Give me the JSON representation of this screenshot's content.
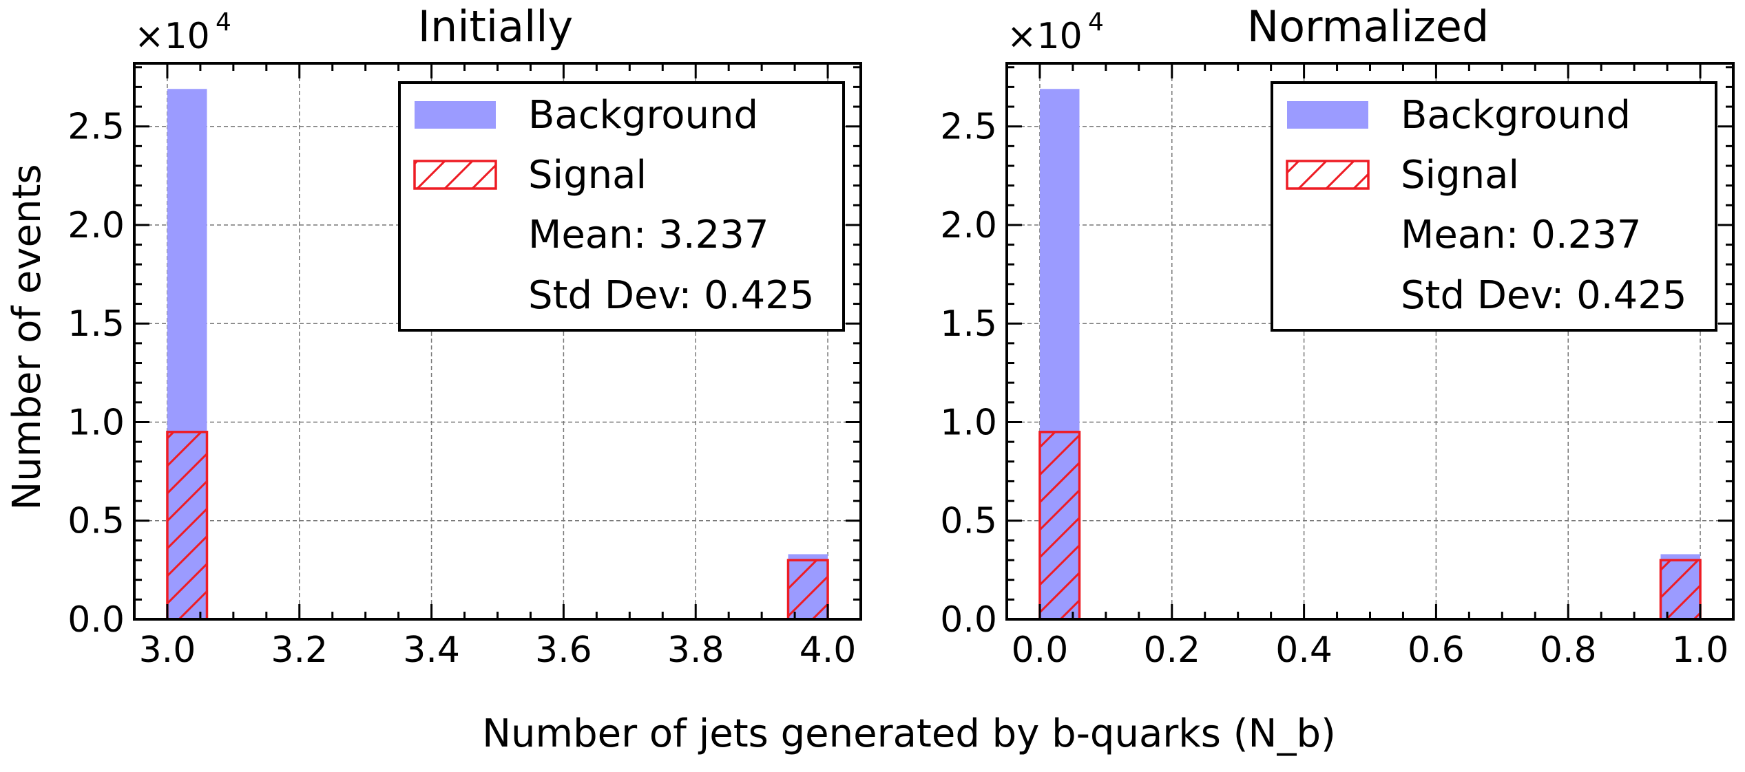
{
  "figure": {
    "xlabel": "Number of jets generated by b-quarks (N_b)",
    "ylabel": "Number of events"
  },
  "chart_data": [
    {
      "type": "bar",
      "title": "Initially",
      "xlim": [
        2.95,
        4.05
      ],
      "ylim": [
        0,
        28200
      ],
      "y_multiplier_text": "×10",
      "y_multiplier_exp": "4",
      "xticks": [
        "3.0",
        "3.2",
        "3.4",
        "3.6",
        "3.8",
        "4.0"
      ],
      "xtick_values": [
        3.0,
        3.2,
        3.4,
        3.6,
        3.8,
        4.0
      ],
      "yticks": [
        "0.0",
        "0.5",
        "1.0",
        "1.5",
        "2.0",
        "2.5"
      ],
      "ytick_values": [
        0,
        5000,
        10000,
        15000,
        20000,
        25000
      ],
      "grid": true,
      "legend_position": "top-right",
      "bin_width": 0.06,
      "series": [
        {
          "name": "Background",
          "color": "#9b9bff",
          "style": "filled",
          "bins": [
            {
              "x0": 3.0,
              "value": 26900
            },
            {
              "x0": 3.94,
              "value": 3300
            }
          ]
        },
        {
          "name": "Signal",
          "color": "#ee1c24",
          "style": "hatched-outline",
          "bins": [
            {
              "x0": 3.0,
              "value": 9500
            },
            {
              "x0": 3.94,
              "value": 3000
            }
          ]
        }
      ],
      "legend_extra": [
        "Mean: 3.237",
        "Std Dev: 0.425"
      ]
    },
    {
      "type": "bar",
      "title": "Normalized",
      "xlim": [
        -0.05,
        1.05
      ],
      "ylim": [
        0,
        28200
      ],
      "y_multiplier_text": "×10",
      "y_multiplier_exp": "4",
      "xticks": [
        "0.0",
        "0.2",
        "0.4",
        "0.6",
        "0.8",
        "1.0"
      ],
      "xtick_values": [
        0.0,
        0.2,
        0.4,
        0.6,
        0.8,
        1.0
      ],
      "yticks": [
        "0.0",
        "0.5",
        "1.0",
        "1.5",
        "2.0",
        "2.5"
      ],
      "ytick_values": [
        0,
        5000,
        10000,
        15000,
        20000,
        25000
      ],
      "grid": true,
      "legend_position": "top-right",
      "bin_width": 0.06,
      "series": [
        {
          "name": "Background",
          "color": "#9b9bff",
          "style": "filled",
          "bins": [
            {
              "x0": 0.0,
              "value": 26900
            },
            {
              "x0": 0.94,
              "value": 3300
            }
          ]
        },
        {
          "name": "Signal",
          "color": "#ee1c24",
          "style": "hatched-outline",
          "bins": [
            {
              "x0": 0.0,
              "value": 9500
            },
            {
              "x0": 0.94,
              "value": 3000
            }
          ]
        }
      ],
      "legend_extra": [
        "Mean: 0.237",
        "Std Dev: 0.425"
      ]
    }
  ]
}
